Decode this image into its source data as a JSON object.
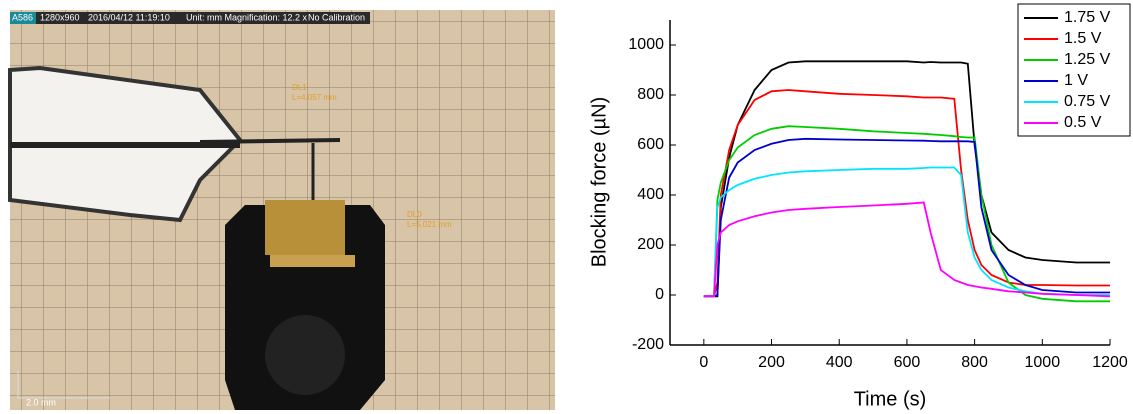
{
  "photo": {
    "header": [
      "A586",
      "1280x960",
      "2016/04/12 11:19:10",
      "Unit: mm Magnification: 12.2 x",
      "No Calibration"
    ],
    "annotations": [
      "DL1",
      "L=4.057 mm",
      "DL0",
      "L=5.021 mm"
    ],
    "scale_bar": "2.0 mm"
  },
  "chart_data": {
    "type": "line",
    "xlabel": "Time (s)",
    "ylabel": "Blocking force (µN)",
    "x": [
      0,
      30,
      40,
      50,
      75,
      100,
      150,
      200,
      250,
      300,
      400,
      500,
      600,
      650,
      670,
      700,
      740,
      760,
      780,
      800,
      820,
      850,
      900,
      950,
      1000,
      1100,
      1200
    ],
    "series": [
      {
        "name": "1.75 V",
        "color": "#000000",
        "values": [
          -5,
          -5,
          -5,
          350,
          550,
          680,
          820,
          900,
          930,
          935,
          935,
          935,
          935,
          930,
          932,
          930,
          930,
          930,
          925,
          600,
          400,
          250,
          180,
          150,
          140,
          130,
          130
        ]
      },
      {
        "name": "1.5 V",
        "color": "#ff0000",
        "values": [
          -5,
          -5,
          50,
          400,
          580,
          680,
          780,
          815,
          820,
          815,
          805,
          800,
          795,
          790,
          790,
          790,
          785,
          500,
          300,
          180,
          120,
          80,
          50,
          40,
          40,
          38,
          38
        ]
      },
      {
        "name": "1.25 V",
        "color": "#00cc00",
        "values": [
          -5,
          -5,
          380,
          450,
          540,
          590,
          640,
          665,
          675,
          672,
          665,
          655,
          648,
          645,
          643,
          640,
          635,
          632,
          630,
          630,
          400,
          200,
          50,
          0,
          -15,
          -25,
          -25
        ]
      },
      {
        "name": "1 V",
        "color": "#0000cc",
        "values": [
          -5,
          -5,
          0,
          300,
          470,
          530,
          580,
          605,
          620,
          625,
          622,
          620,
          618,
          617,
          616,
          615,
          615,
          615,
          615,
          612,
          350,
          180,
          80,
          40,
          20,
          10,
          10
        ]
      },
      {
        "name": "0.75 V",
        "color": "#00e5ff",
        "values": [
          -5,
          -5,
          350,
          390,
          420,
          440,
          465,
          480,
          490,
          495,
          500,
          505,
          505,
          508,
          510,
          510,
          510,
          480,
          250,
          150,
          100,
          60,
          30,
          15,
          5,
          0,
          0
        ]
      },
      {
        "name": "0.5 V",
        "color": "#ff00ff",
        "values": [
          -5,
          -5,
          200,
          250,
          280,
          295,
          315,
          330,
          340,
          345,
          352,
          358,
          365,
          370,
          250,
          100,
          60,
          50,
          40,
          35,
          30,
          25,
          15,
          10,
          5,
          0,
          -5
        ]
      }
    ],
    "xlim": [
      -100,
      1200
    ],
    "ylim": [
      -200,
      1100
    ],
    "xticks": [
      0,
      200,
      400,
      600,
      800,
      1000,
      1200
    ],
    "yticks": [
      -200,
      0,
      200,
      400,
      600,
      800,
      1000
    ],
    "legend": "upper right"
  }
}
